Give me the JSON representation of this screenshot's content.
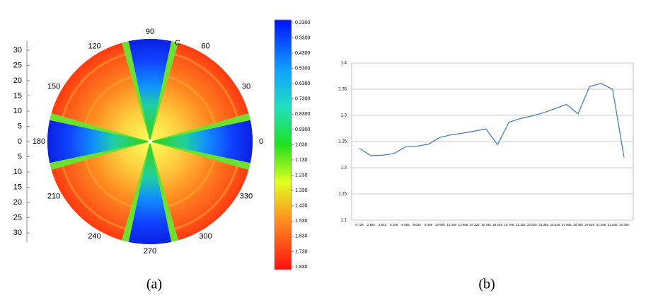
{
  "chart_data": [
    {
      "type": "polar",
      "angles": [
        0,
        30,
        60,
        90,
        120,
        150,
        180,
        210,
        240,
        270,
        300,
        330
      ],
      "marker_label": "C",
      "ylim": [
        -33,
        33
      ],
      "yticks": [
        {
          "value": 30,
          "label": "30"
        },
        {
          "value": 25,
          "label": "25"
        },
        {
          "value": 20,
          "label": "20"
        },
        {
          "value": 15,
          "label": "15"
        },
        {
          "value": 10,
          "label": "10"
        },
        {
          "value": 5,
          "label": "5"
        },
        {
          "value": 0,
          "label": "0"
        },
        {
          "value": -5,
          "label": "5"
        },
        {
          "value": -10,
          "label": "10"
        },
        {
          "value": -15,
          "label": "15"
        },
        {
          "value": -20,
          "label": "20"
        },
        {
          "value": -25,
          "label": "25"
        },
        {
          "value": -30,
          "label": "30"
        }
      ],
      "colorbar_lim": [
        0.23,
        1.83
      ],
      "colorbar_ticks": [
        {
          "value": 0.23,
          "label": "0.2300"
        },
        {
          "value": 0.33,
          "label": "0.3300"
        },
        {
          "value": 0.43,
          "label": "0.4300"
        },
        {
          "value": 0.53,
          "label": "0.5300"
        },
        {
          "value": 0.63,
          "label": "0.6300"
        },
        {
          "value": 0.73,
          "label": "0.7300"
        },
        {
          "value": 0.83,
          "label": "0.8300"
        },
        {
          "value": 0.93,
          "label": "0.9300"
        },
        {
          "value": 1.03,
          "label": "1.030"
        },
        {
          "value": 1.13,
          "label": "1.130"
        },
        {
          "value": 1.23,
          "label": "1.230"
        },
        {
          "value": 1.33,
          "label": "1.330"
        },
        {
          "value": 1.43,
          "label": "1.430"
        },
        {
          "value": 1.53,
          "label": "1.530"
        },
        {
          "value": 1.63,
          "label": "1.630"
        },
        {
          "value": 1.73,
          "label": "1.730"
        },
        {
          "value": 1.83,
          "label": "1.830"
        }
      ],
      "caption": "(a)"
    },
    {
      "type": "line",
      "categories": [
        "0.725",
        "2.185",
        "3.645",
        "5.105",
        "6.565",
        "8.025",
        "9.485",
        "10.945",
        "12.405",
        "13.865",
        "15.325",
        "16.785",
        "18.245",
        "19.705",
        "21.165",
        "22.625",
        "24.085",
        "25.545",
        "27.005",
        "28.465",
        "29.925",
        "31.385",
        "32.845",
        "34.305"
      ],
      "series": [
        {
          "color": "#4a7ebb",
          "values": [
            1.237,
            1.223,
            1.224,
            1.227,
            1.24,
            1.241,
            1.245,
            1.258,
            1.263,
            1.266,
            1.27,
            1.274,
            1.244,
            1.287,
            1.294,
            1.299,
            1.305,
            1.313,
            1.321,
            1.303,
            1.355,
            1.361,
            1.35,
            1.22
          ]
        }
      ],
      "ylim": [
        1.1,
        1.4
      ],
      "yticks": [
        1.1,
        1.15,
        1.2,
        1.25,
        1.3,
        1.35,
        1.4
      ],
      "grid": true,
      "caption": "(b)"
    }
  ]
}
